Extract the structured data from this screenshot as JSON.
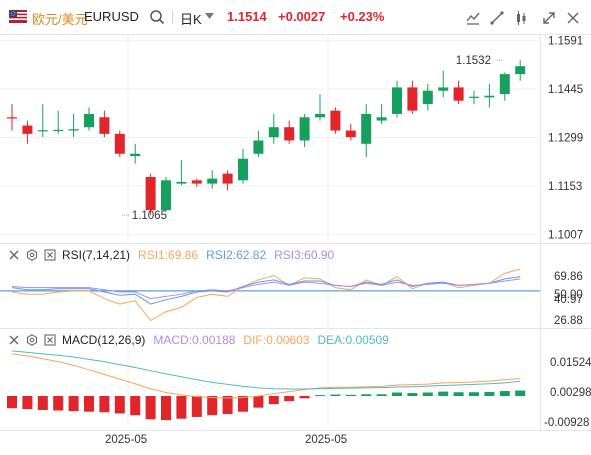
{
  "toolbar": {
    "pair_cn": "欧元/美元",
    "pair_en": "EURUSD",
    "period": "日K",
    "price": "1.1514",
    "change": "+0.0027",
    "change_pct": "+0.23%",
    "icons": [
      "search-icon",
      "indicator-icon",
      "drawing-icon",
      "settings-icon",
      "scale-icon",
      "fullscreen-icon"
    ]
  },
  "colors": {
    "up": "#e0262b",
    "down": "#17a05d",
    "rsi1": "#f5a65a",
    "rsi2": "#5aa0e0",
    "rsi3": "#b28be0",
    "dif": "#f5a65a",
    "dea": "#52b8c8",
    "grid": "#eef0f2"
  },
  "rsi_header": {
    "name": "RSI(7,14,21)",
    "rsi1": "RSI1:69.86",
    "rsi2": "RSI2:62.82",
    "rsi3": "RSI3:60.90"
  },
  "macd_header": {
    "name": "MACD(12,26,9)",
    "macd": "MACD:0.00188",
    "dif": "DIF:0.00603",
    "dea": "DEA:0.00509"
  },
  "x_labels": [
    "2025-05",
    "2025-05"
  ],
  "chart_data": [
    {
      "type": "candlestick",
      "title": "",
      "y_ticks": [
        "1.1591",
        "1.1445",
        "1.1299",
        "1.1153",
        "1.1007"
      ],
      "ylim": [
        1.099,
        1.1605
      ],
      "annotations": [
        {
          "text": "1.1532",
          "value": 1.1532,
          "bar": 32
        },
        {
          "text": "1.1065",
          "value": 1.1065,
          "bar": 7
        }
      ],
      "candles": [
        {
          "o": 1.136,
          "c": 1.136,
          "h": 1.14,
          "l": 1.132,
          "up": true
        },
        {
          "o": 1.131,
          "c": 1.1335,
          "h": 1.135,
          "l": 1.128,
          "up": true
        },
        {
          "o": 1.132,
          "c": 1.1321,
          "h": 1.14,
          "l": 1.13,
          "up": false
        },
        {
          "o": 1.132,
          "c": 1.1322,
          "h": 1.138,
          "l": 1.131,
          "up": false
        },
        {
          "o": 1.132,
          "c": 1.1324,
          "h": 1.137,
          "l": 1.13,
          "up": false
        },
        {
          "o": 1.137,
          "c": 1.133,
          "h": 1.139,
          "l": 1.132,
          "up": false
        },
        {
          "o": 1.136,
          "c": 1.131,
          "h": 1.138,
          "l": 1.13,
          "up": true
        },
        {
          "o": 1.131,
          "c": 1.125,
          "h": 1.132,
          "l": 1.124,
          "up": true
        },
        {
          "o": 1.125,
          "c": 1.1243,
          "h": 1.128,
          "l": 1.122,
          "up": false
        },
        {
          "o": 1.118,
          "c": 1.108,
          "h": 1.119,
          "l": 1.1065,
          "up": true
        },
        {
          "o": 1.108,
          "c": 1.117,
          "h": 1.118,
          "l": 1.1075,
          "up": false
        },
        {
          "o": 1.116,
          "c": 1.1165,
          "h": 1.123,
          "l": 1.1155,
          "up": false
        },
        {
          "o": 1.116,
          "c": 1.117,
          "h": 1.1175,
          "l": 1.115,
          "up": true
        },
        {
          "o": 1.116,
          "c": 1.1175,
          "h": 1.12,
          "l": 1.1145,
          "up": false
        },
        {
          "o": 1.119,
          "c": 1.116,
          "h": 1.12,
          "l": 1.114,
          "up": true
        },
        {
          "o": 1.117,
          "c": 1.1235,
          "h": 1.1265,
          "l": 1.116,
          "up": false
        },
        {
          "o": 1.125,
          "c": 1.129,
          "h": 1.132,
          "l": 1.124,
          "up": false
        },
        {
          "o": 1.13,
          "c": 1.133,
          "h": 1.137,
          "l": 1.128,
          "up": false
        },
        {
          "o": 1.133,
          "c": 1.129,
          "h": 1.135,
          "l": 1.128,
          "up": true
        },
        {
          "o": 1.129,
          "c": 1.136,
          "h": 1.137,
          "l": 1.127,
          "up": false
        },
        {
          "o": 1.136,
          "c": 1.137,
          "h": 1.143,
          "l": 1.135,
          "up": false
        },
        {
          "o": 1.138,
          "c": 1.132,
          "h": 1.139,
          "l": 1.131,
          "up": true
        },
        {
          "o": 1.132,
          "c": 1.13,
          "h": 1.134,
          "l": 1.129,
          "up": true
        },
        {
          "o": 1.128,
          "c": 1.137,
          "h": 1.14,
          "l": 1.124,
          "up": false
        },
        {
          "o": 1.136,
          "c": 1.135,
          "h": 1.14,
          "l": 1.134,
          "up": false
        },
        {
          "o": 1.137,
          "c": 1.145,
          "h": 1.147,
          "l": 1.136,
          "up": false
        },
        {
          "o": 1.145,
          "c": 1.138,
          "h": 1.147,
          "l": 1.137,
          "up": true
        },
        {
          "o": 1.14,
          "c": 1.144,
          "h": 1.146,
          "l": 1.138,
          "up": false
        },
        {
          "o": 1.144,
          "c": 1.145,
          "h": 1.15,
          "l": 1.142,
          "up": false
        },
        {
          "o": 1.145,
          "c": 1.141,
          "h": 1.147,
          "l": 1.14,
          "up": true
        },
        {
          "o": 1.142,
          "c": 1.1422,
          "h": 1.144,
          "l": 1.14,
          "up": false
        },
        {
          "o": 1.142,
          "c": 1.1425,
          "h": 1.146,
          "l": 1.139,
          "up": false
        },
        {
          "o": 1.143,
          "c": 1.149,
          "h": 1.1495,
          "l": 1.141,
          "up": false
        },
        {
          "o": 1.149,
          "c": 1.1514,
          "h": 1.1532,
          "l": 1.147,
          "up": false
        }
      ]
    },
    {
      "type": "line",
      "title": "RSI(7,14,21)",
      "y_ticks": [
        "69.86",
        "50.00",
        "40.97",
        "26.88"
      ],
      "ylim": [
        18,
        80
      ],
      "hline": 50,
      "series": [
        {
          "name": "RSI1",
          "values": [
            49,
            47,
            47,
            49,
            50,
            50,
            43,
            38,
            41,
            23,
            31,
            35,
            44,
            47,
            45,
            54,
            60,
            64,
            55,
            62,
            61,
            53,
            51,
            60,
            55,
            63,
            52,
            57,
            58,
            53,
            55,
            57,
            66,
            70
          ]
        },
        {
          "name": "RSI2",
          "values": [
            53,
            51,
            51,
            52,
            52,
            52,
            49,
            46,
            47,
            38,
            42,
            45,
            49,
            50,
            49,
            54,
            58,
            60,
            56,
            59,
            59,
            55,
            54,
            58,
            56,
            60,
            54,
            57,
            58,
            55,
            56,
            57,
            61,
            63
          ]
        },
        {
          "name": "RSI3",
          "values": [
            54,
            53,
            53,
            53,
            53,
            53,
            51,
            49,
            49,
            43,
            45,
            47,
            50,
            51,
            50,
            53,
            56,
            58,
            55,
            58,
            57,
            55,
            54,
            57,
            55,
            58,
            55,
            56,
            57,
            55,
            56,
            57,
            59,
            61
          ]
        }
      ]
    },
    {
      "type": "bar+line",
      "title": "MACD(12,26,9)",
      "y_ticks": [
        "0.01524",
        "0.00298",
        "-0.00928"
      ],
      "ylim": [
        -0.011,
        0.0165
      ],
      "bars": [
        -0.0042,
        -0.0045,
        -0.0048,
        -0.005,
        -0.0052,
        -0.0054,
        -0.0056,
        -0.006,
        -0.0066,
        -0.008,
        -0.0083,
        -0.0078,
        -0.0072,
        -0.0066,
        -0.0062,
        -0.0054,
        -0.004,
        -0.0028,
        -0.0018,
        -0.0008,
        0.0003,
        0.0005,
        0.0004,
        0.0006,
        0.0006,
        0.0012,
        0.001,
        0.0012,
        0.0015,
        0.0013,
        0.0013,
        0.0014,
        0.0017,
        0.0019
      ],
      "series": [
        {
          "name": "DIF",
          "values": [
            0.0145,
            0.0138,
            0.0128,
            0.0118,
            0.0105,
            0.009,
            0.0074,
            0.0058,
            0.0042,
            0.0025,
            0.0012,
            0.0004,
            -0.0002,
            -0.0005,
            -0.0007,
            -0.0005,
            0.0,
            0.0008,
            0.0015,
            0.0022,
            0.0028,
            0.003,
            0.003,
            0.0032,
            0.0033,
            0.0038,
            0.0039,
            0.0041,
            0.0045,
            0.0046,
            0.0048,
            0.0051,
            0.0056,
            0.006
          ]
        },
        {
          "name": "DEA",
          "values": [
            0.0155,
            0.015,
            0.0145,
            0.014,
            0.0134,
            0.0126,
            0.0118,
            0.0108,
            0.0098,
            0.0087,
            0.0076,
            0.0066,
            0.0056,
            0.0047,
            0.004,
            0.0033,
            0.0028,
            0.0025,
            0.0024,
            0.0024,
            0.0025,
            0.0026,
            0.0027,
            0.0028,
            0.0029,
            0.0031,
            0.0032,
            0.0034,
            0.0036,
            0.0038,
            0.004,
            0.0042,
            0.0045,
            0.0051
          ]
        }
      ]
    }
  ]
}
